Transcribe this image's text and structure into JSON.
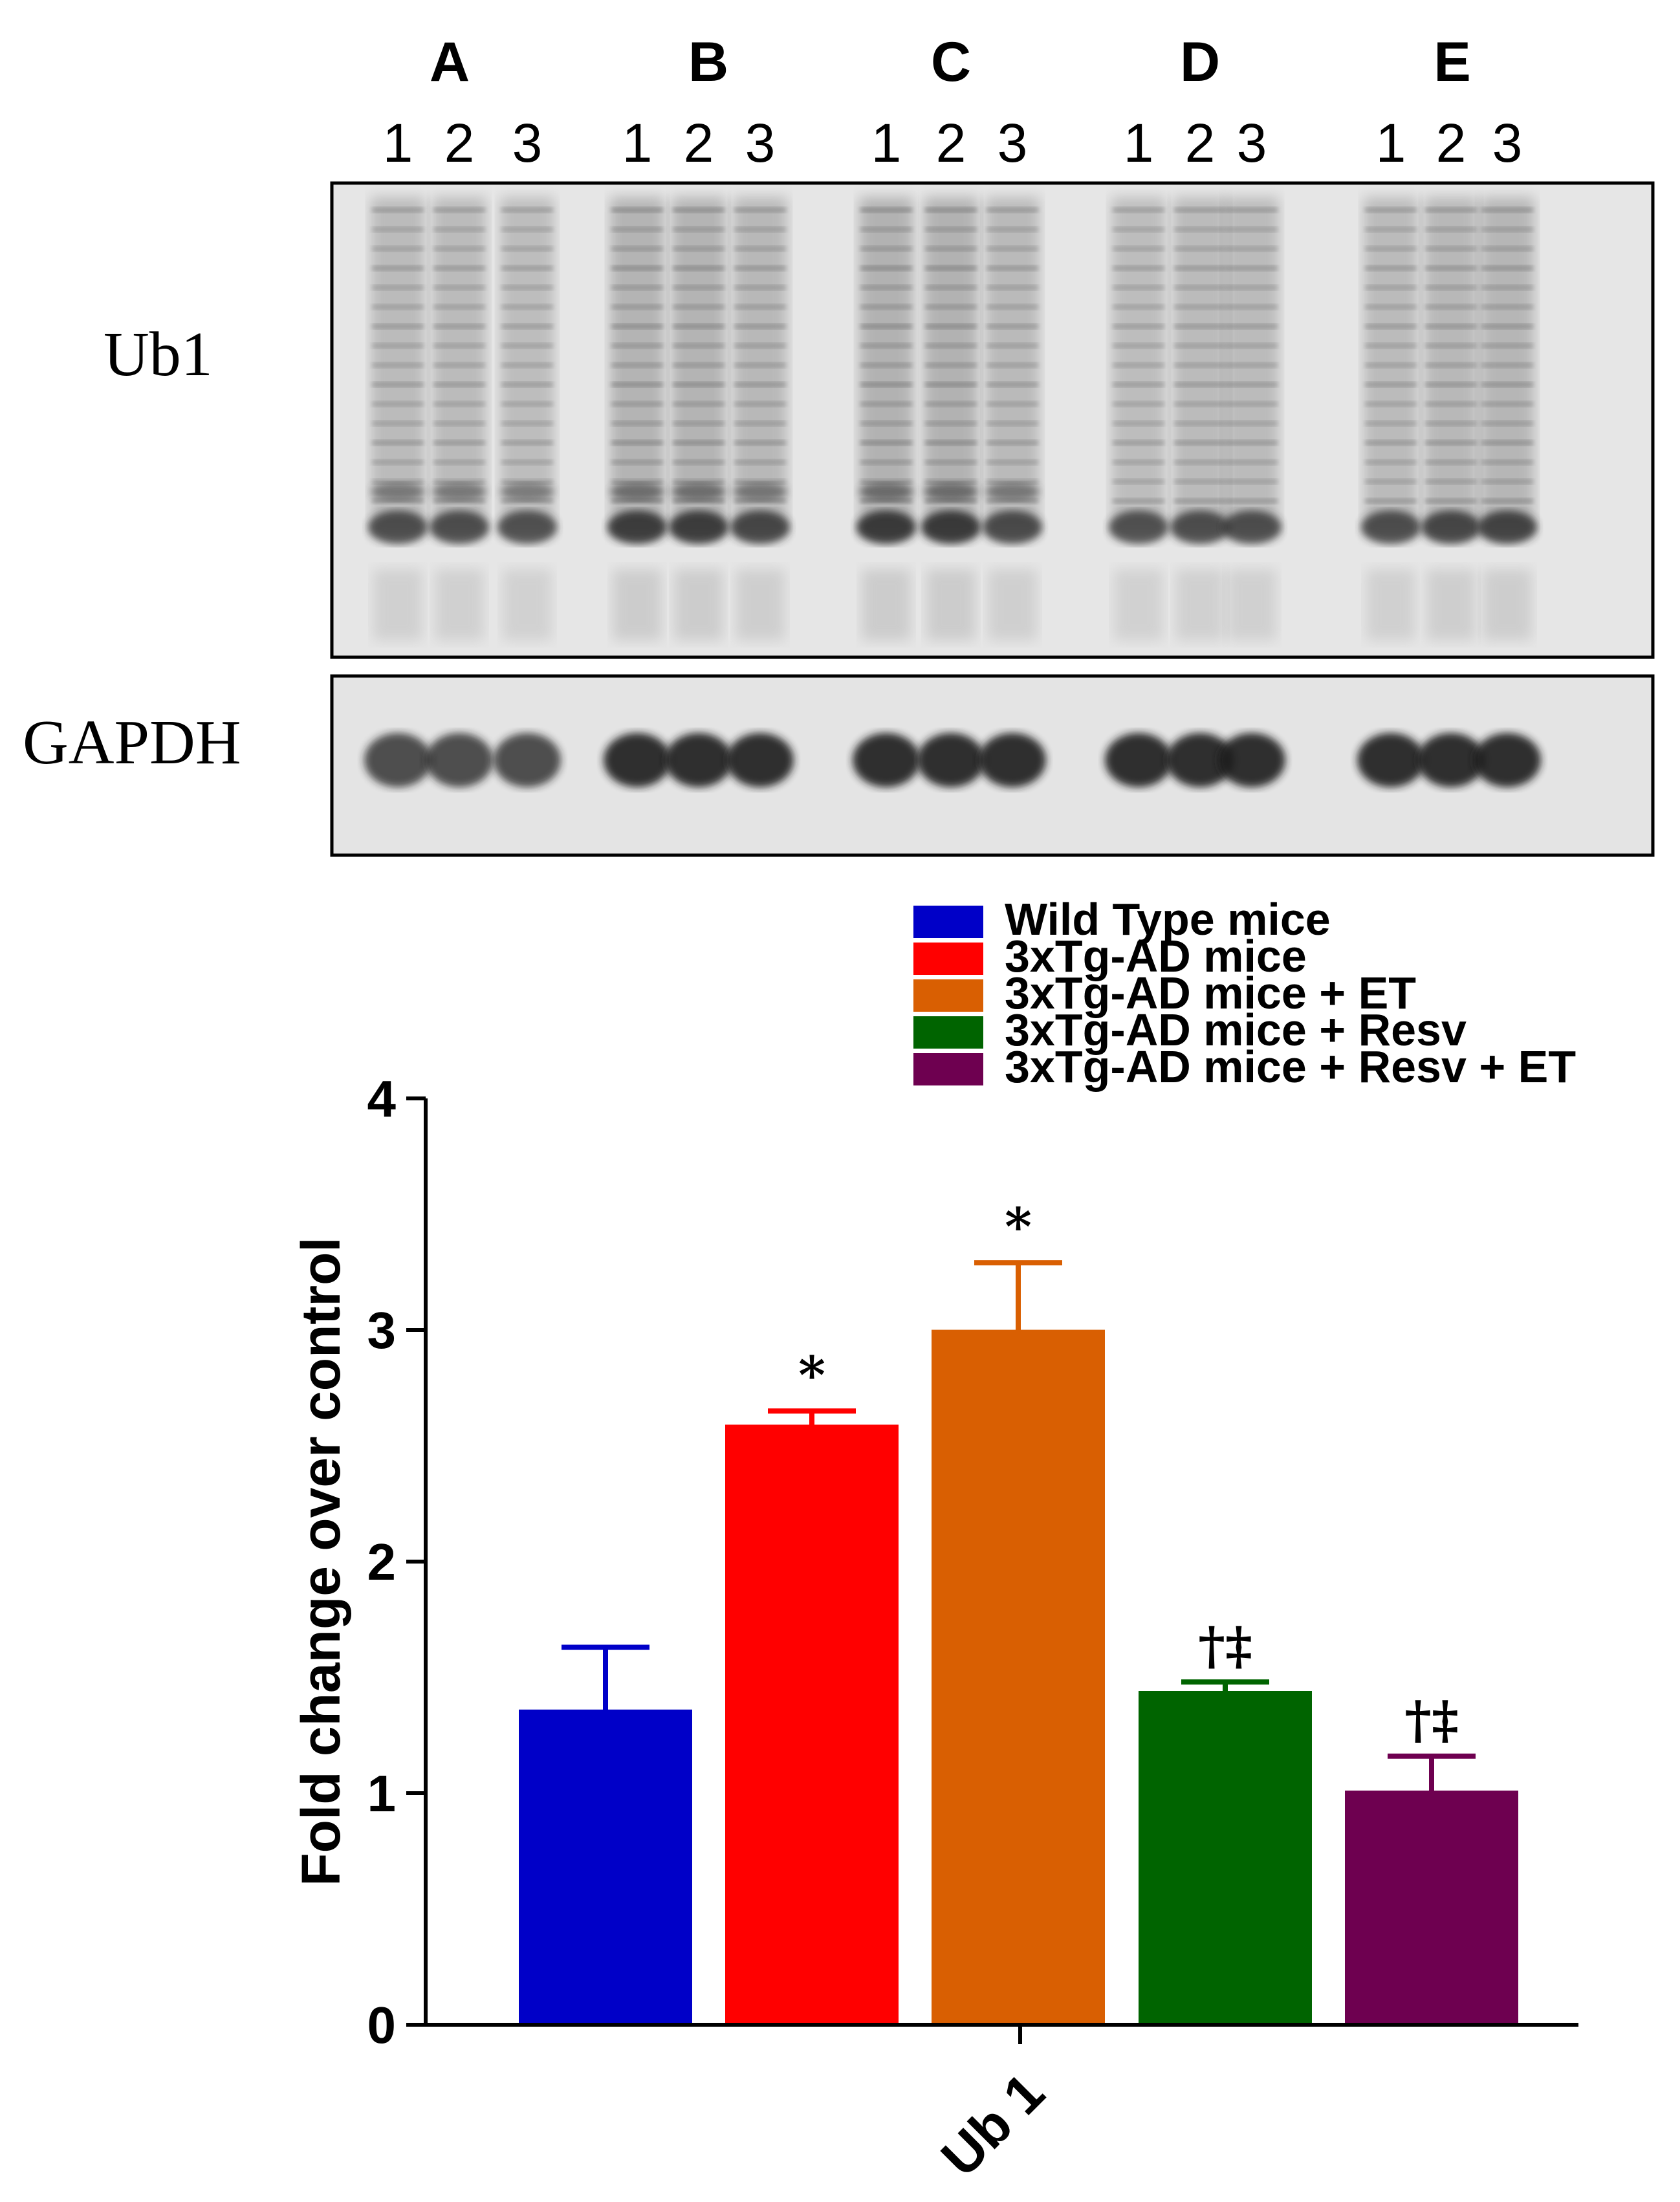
{
  "blot": {
    "group_labels": [
      "A",
      "B",
      "C",
      "D",
      "E"
    ],
    "lane_labels": [
      "1",
      "2",
      "3"
    ],
    "panels": [
      {
        "label": "Ub1"
      },
      {
        "label": "GAPDH"
      }
    ]
  },
  "chart_data": {
    "type": "bar",
    "title": "",
    "xlabel": "",
    "ylabel": "Fold change over control",
    "ylim": [
      0,
      4
    ],
    "yticks": [
      "0",
      "1",
      "2",
      "3",
      "4"
    ],
    "categories": [
      "Ub 1"
    ],
    "legend_position": "top-right",
    "series": [
      {
        "name": "Wild Type mice",
        "color": "#0000c8",
        "values": [
          1.35
        ],
        "error": [
          0.28
        ],
        "annotation": ""
      },
      {
        "name": "3xTg-AD mice",
        "color": "#ff0000",
        "values": [
          2.58
        ],
        "error": [
          0.07
        ],
        "annotation": "*"
      },
      {
        "name": "3xTg-AD mice + ET",
        "color": "#d95f02",
        "values": [
          2.99
        ],
        "error": [
          0.3
        ],
        "annotation": "*"
      },
      {
        "name": "3xTg-AD mice + Resv",
        "color": "#006400",
        "values": [
          1.43
        ],
        "error": [
          0.05
        ],
        "annotation": "†‡"
      },
      {
        "name": "3xTg-AD mice + Resv + ET",
        "color": "#6e0050",
        "values": [
          1.0
        ],
        "error": [
          0.16
        ],
        "annotation": "†‡"
      }
    ]
  }
}
